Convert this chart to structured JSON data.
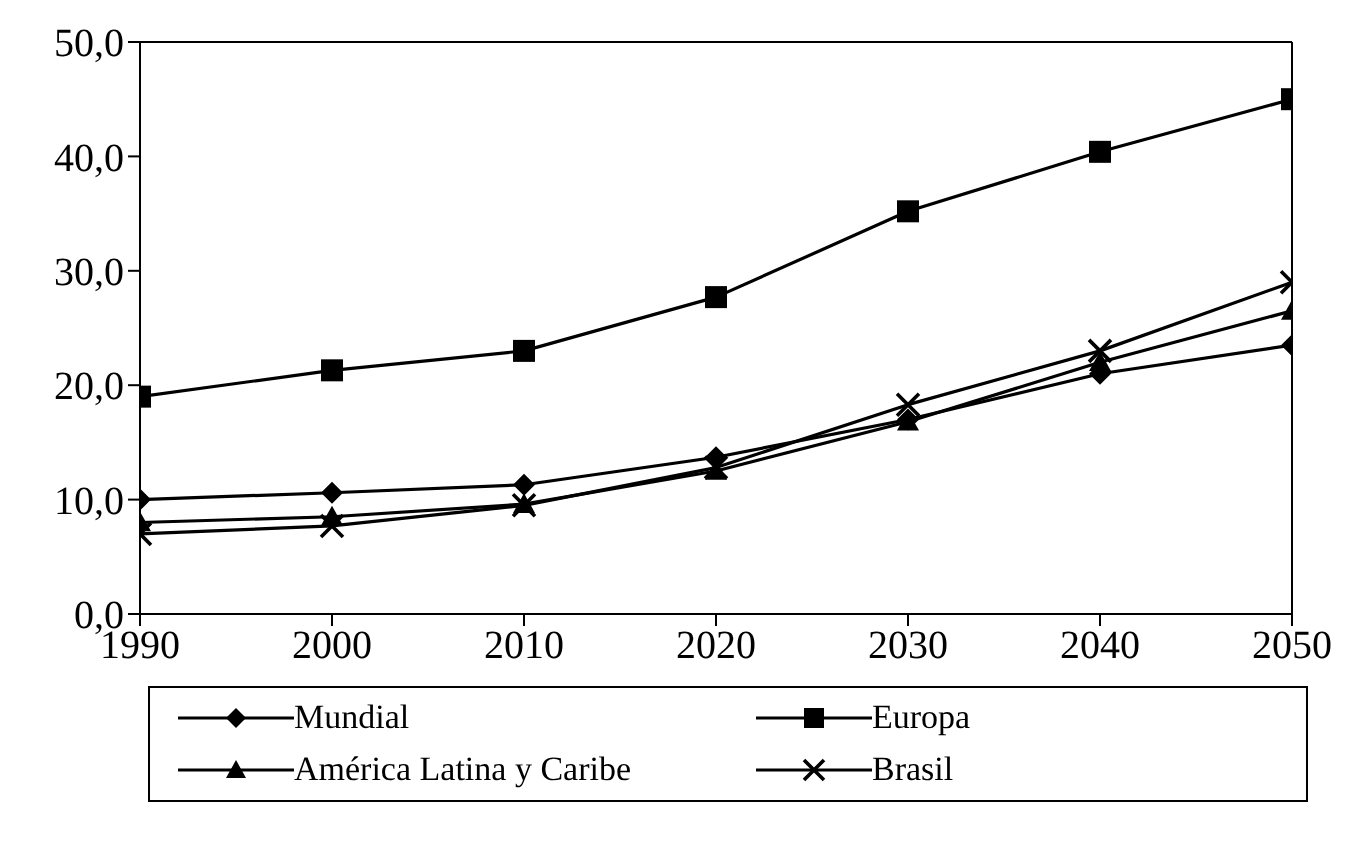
{
  "chart_data": {
    "type": "line",
    "x": [
      1990,
      2000,
      2010,
      2020,
      2030,
      2040,
      2050
    ],
    "series": [
      {
        "name": "Mundial",
        "color": "#000000",
        "marker": "diamond",
        "values": [
          10.0,
          10.6,
          11.3,
          13.7,
          17.0,
          21.0,
          23.5
        ]
      },
      {
        "name": "Europa",
        "color": "#000000",
        "marker": "square",
        "values": [
          19.0,
          21.3,
          23.0,
          27.7,
          35.2,
          40.4,
          45.0
        ]
      },
      {
        "name": "América Latina y Caribe",
        "color": "#000000",
        "marker": "triangle",
        "values": [
          8.0,
          8.5,
          9.6,
          12.5,
          16.8,
          22.0,
          26.5
        ]
      },
      {
        "name": "Brasil",
        "color": "#000000",
        "marker": "cross",
        "values": [
          7.0,
          7.7,
          9.5,
          12.8,
          18.3,
          23.0,
          29.0
        ]
      }
    ],
    "xlim": [
      1990,
      2050
    ],
    "xticks": [
      1990,
      2000,
      2010,
      2020,
      2030,
      2040,
      2050
    ],
    "ylim": [
      0,
      50
    ],
    "yticks": [
      {
        "value": 0,
        "label": "0,0"
      },
      {
        "value": 10,
        "label": "10,0"
      },
      {
        "value": 20,
        "label": "20,0"
      },
      {
        "value": 30,
        "label": "30,0"
      },
      {
        "value": 40,
        "label": "40,0"
      },
      {
        "value": 50,
        "label": "50,0"
      }
    ],
    "grid": false,
    "legend": "bottom",
    "line_style": "solid"
  }
}
